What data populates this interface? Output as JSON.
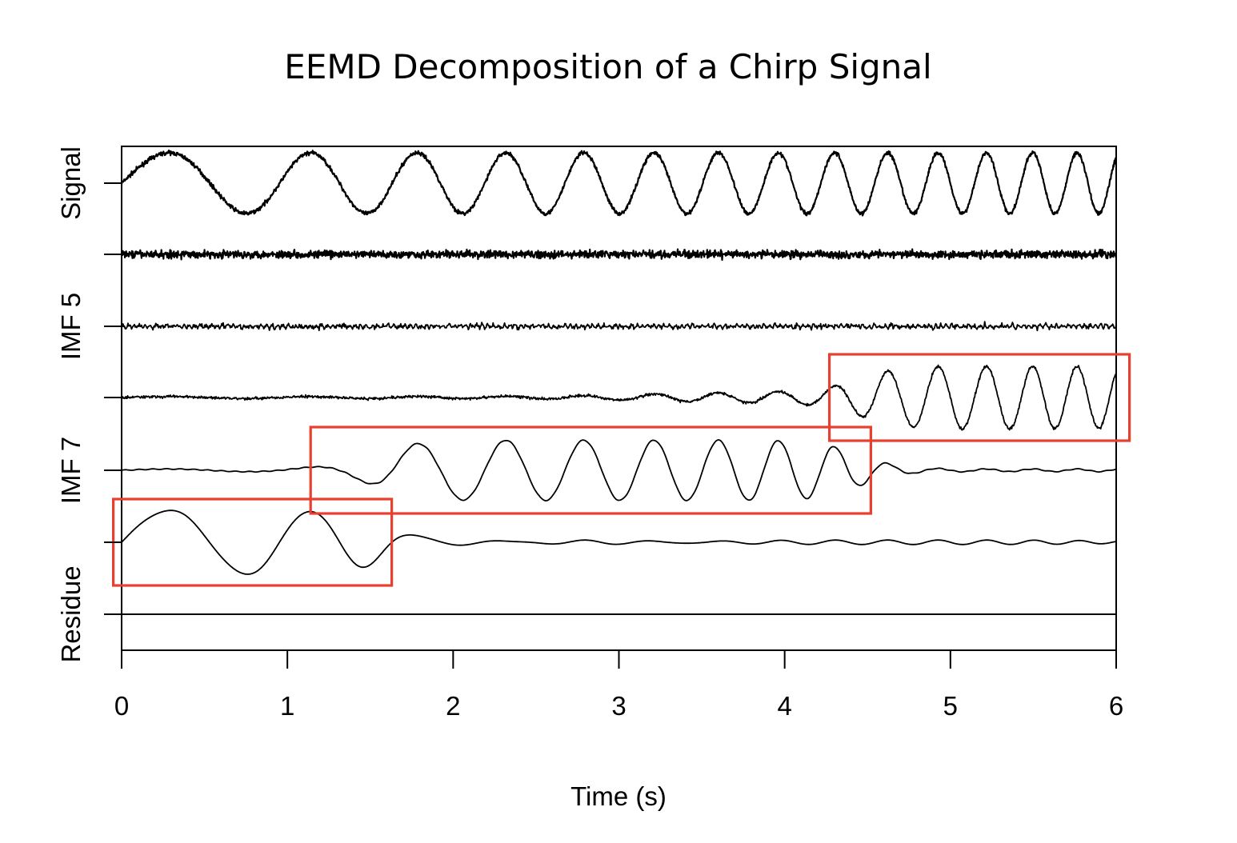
{
  "chart_data": {
    "type": "line",
    "title": "EEMD Decomposition of a Chirp Signal",
    "xlabel": "Time (s)",
    "xlim": [
      0,
      6
    ],
    "x_ticks": [
      "0",
      "1",
      "2",
      "3",
      "4",
      "5",
      "6"
    ],
    "panel_labels": [
      "Signal",
      "IMF 5",
      "IMF 7",
      "Residue"
    ],
    "grid": false,
    "series": [
      {
        "rows": 1,
        "kind": "signal"
      },
      {
        "rows": 1,
        "kind": "noise-high"
      },
      {
        "rows": 1,
        "kind": "noise-mid"
      },
      {
        "rows": 1,
        "kind": "imf-high"
      },
      {
        "rows": 1,
        "kind": "imf-mid"
      },
      {
        "rows": 1,
        "kind": "imf-low"
      },
      {
        "rows": 1,
        "kind": "residue"
      }
    ],
    "highlights": [
      {
        "row": 3,
        "x_range": [
          4.27,
          6.08
        ],
        "color": "#e8402f"
      },
      {
        "row": 4,
        "x_range": [
          1.14,
          4.52
        ],
        "color": "#e8402f"
      },
      {
        "row": 5,
        "x_range": [
          -0.05,
          1.63
        ],
        "color": "#e8402f"
      }
    ]
  }
}
